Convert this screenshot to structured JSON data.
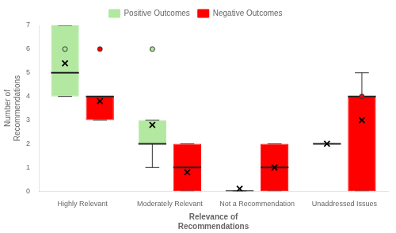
{
  "chart_data": {
    "type": "box",
    "xlabel": "Relevance of\nRecommendations",
    "ylabel": "Number of\nRecommendations",
    "categories": [
      "Highly Relevant",
      "Moderately Relevant",
      "Not a Recommendation",
      "Unaddressed Issues"
    ],
    "series": [
      {
        "name": "Positive Outcomes",
        "color": "#b2e8a0",
        "values": [
          {
            "q1": 4.0,
            "median": 5.0,
            "q3": 7.0,
            "whisker_low": 4.0,
            "whisker_high": 7.0,
            "mean": 5.4,
            "outliers": [
              6.0
            ]
          },
          {
            "q1": 2.0,
            "median": 2.0,
            "q3": 3.0,
            "whisker_low": 1.0,
            "whisker_high": 3.0,
            "mean": 2.8,
            "outliers": [
              6.0
            ]
          },
          {
            "q1": 0.0,
            "median": 0.0,
            "q3": 0.0,
            "whisker_low": 0.0,
            "whisker_high": 0.0,
            "mean": 0.1,
            "outliers": []
          },
          {
            "q1": 2.0,
            "median": 2.0,
            "q3": 2.0,
            "whisker_low": 2.0,
            "whisker_high": 2.0,
            "mean": 2.0,
            "outliers": []
          }
        ]
      },
      {
        "name": "Negative Outcomes",
        "color": "#ff0000",
        "values": [
          {
            "q1": 3.0,
            "median": 4.0,
            "q3": 4.0,
            "whisker_low": 3.0,
            "whisker_high": 4.0,
            "mean": 3.8,
            "outliers": [
              6.0
            ]
          },
          {
            "q1": 0.0,
            "median": 1.0,
            "q3": 2.0,
            "whisker_low": 0.0,
            "whisker_high": 2.0,
            "mean": 0.8,
            "outliers": []
          },
          {
            "q1": 0.0,
            "median": 1.0,
            "q3": 2.0,
            "whisker_low": 0.0,
            "whisker_high": 2.0,
            "mean": 1.0,
            "outliers": []
          },
          {
            "q1": 0.0,
            "median": 4.0,
            "q3": 4.0,
            "whisker_low": 0.0,
            "whisker_high": 5.0,
            "mean": 3.0,
            "outliers": [
              4.0
            ]
          }
        ]
      }
    ],
    "ylim": [
      0,
      7
    ],
    "yticks": [
      0,
      1,
      2,
      3,
      4,
      5,
      6,
      7
    ],
    "grid": false,
    "legend": "top"
  }
}
